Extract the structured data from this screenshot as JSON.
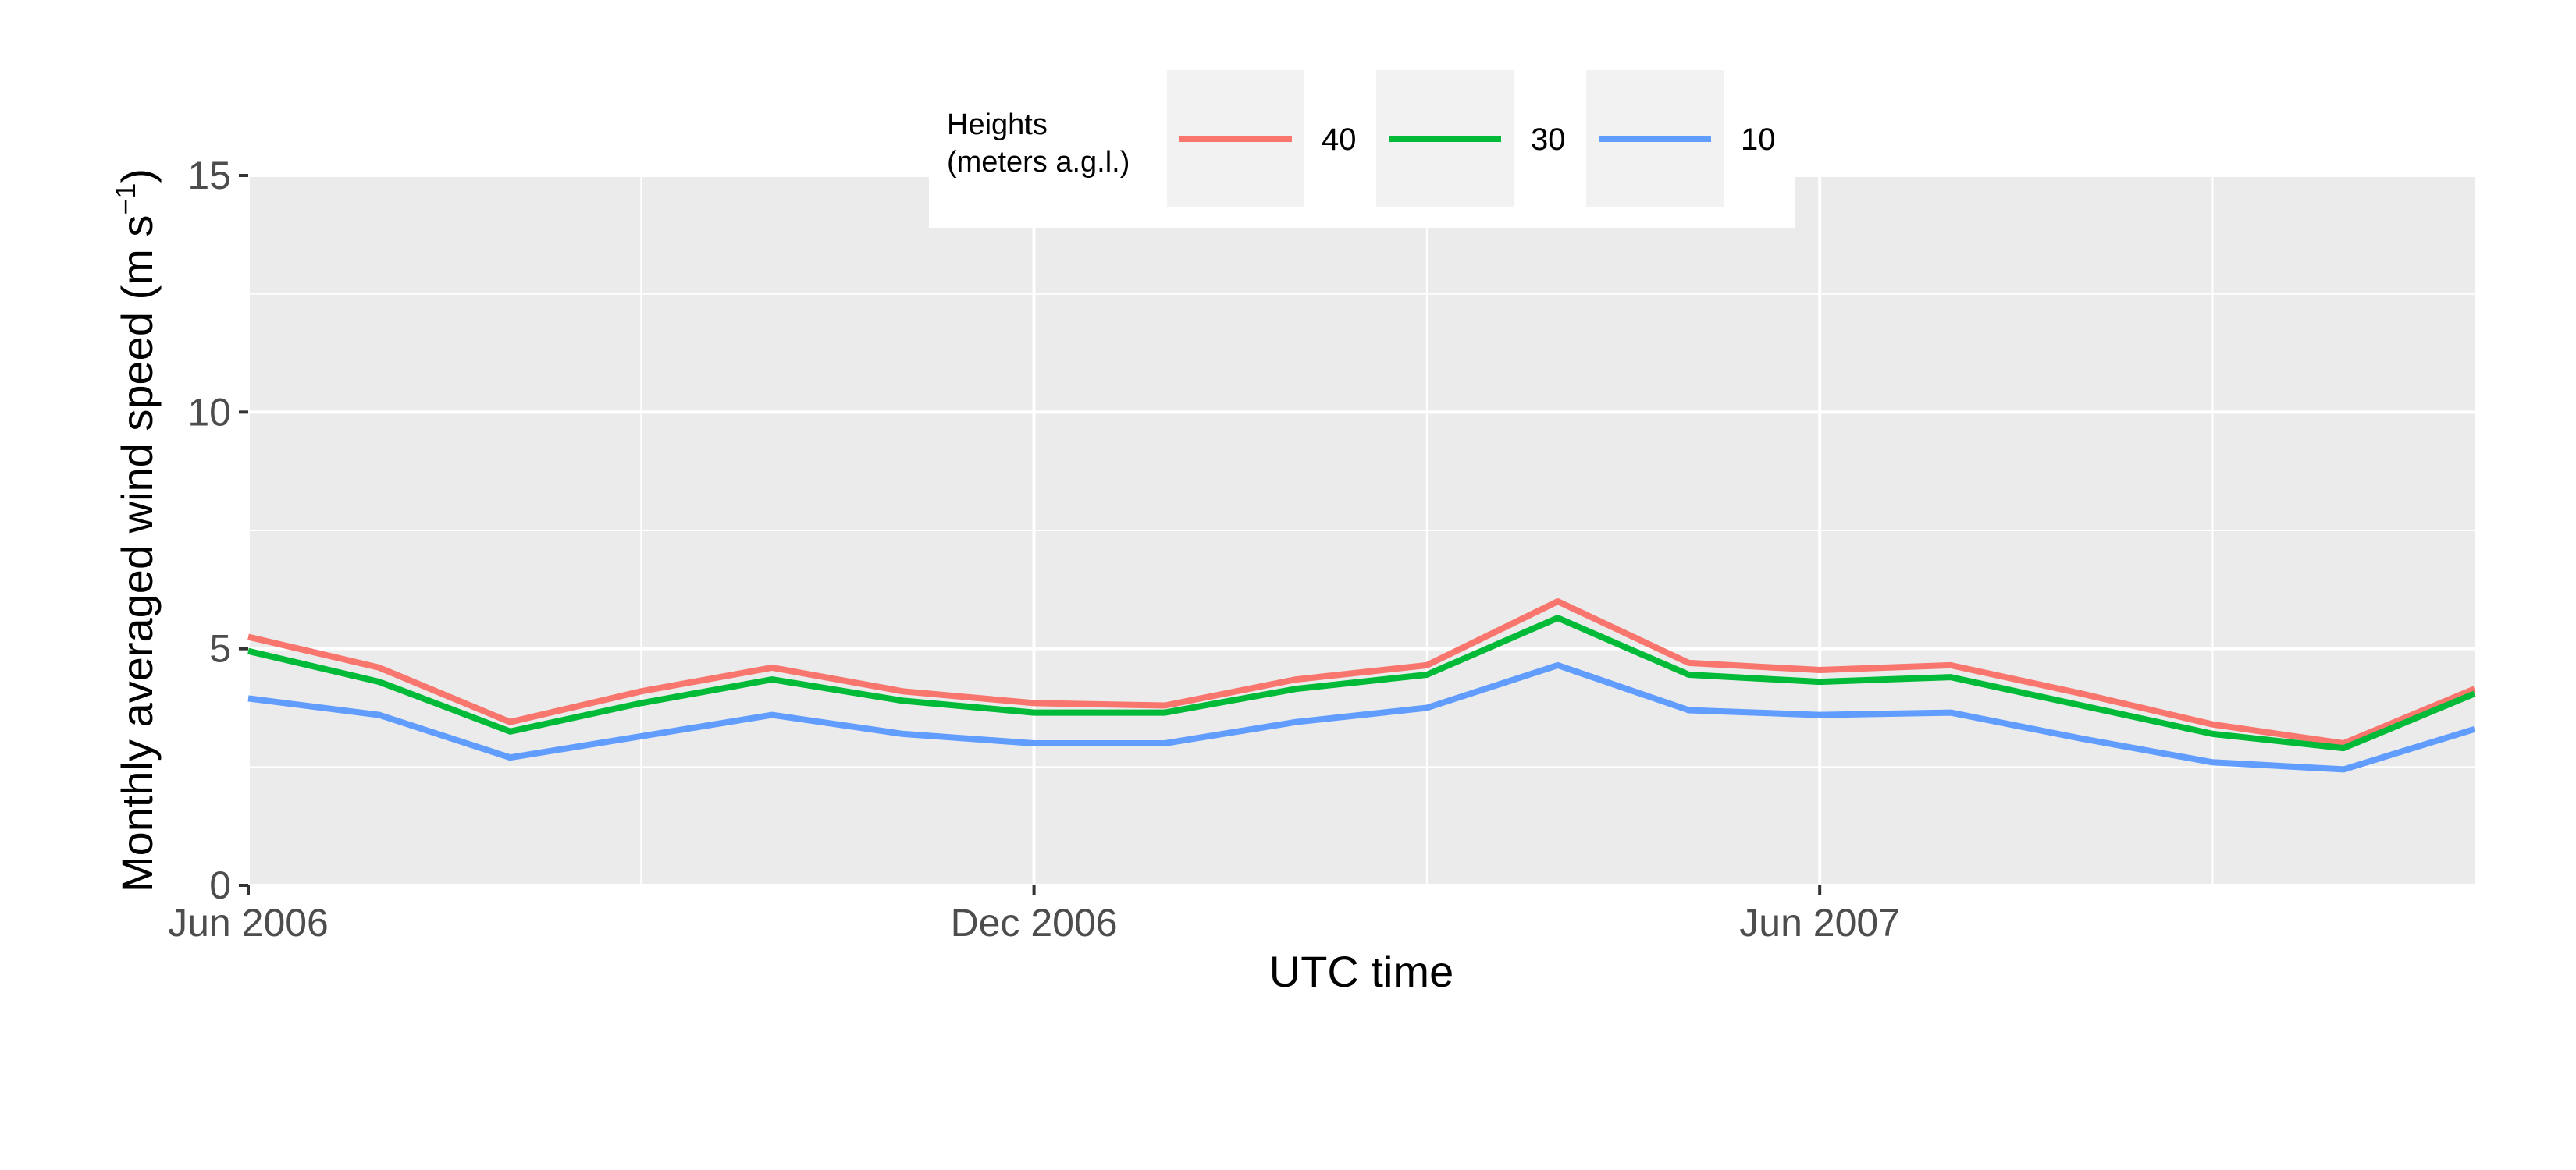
{
  "chart_data": {
    "type": "line",
    "title": "",
    "xlabel": "UTC time",
    "ylabel": "Monthly averaged wind speed (m s",
    "ylabel_unit_sup": "−1",
    "ylabel_close": ")",
    "ylim": [
      0,
      15
    ],
    "y_ticks": [
      0,
      5,
      10,
      15
    ],
    "y_tick_labels": [
      "0",
      "5",
      "10",
      "15"
    ],
    "xlim_months": [
      0,
      17
    ],
    "x_ticks_months": [
      0,
      6,
      12
    ],
    "x_tick_labels": [
      "Jun 2006",
      "Dec 2006",
      "Jun 2007"
    ],
    "x_minor_months": [
      3,
      9,
      15
    ],
    "x_months": [
      0,
      1,
      2,
      3,
      4,
      5,
      6,
      7,
      8,
      9,
      10,
      11,
      12,
      13,
      14,
      15,
      16,
      17
    ],
    "legend": {
      "title_line1": "Heights",
      "title_line2": "(meters a.g.l.)",
      "position": "top-center"
    },
    "series": [
      {
        "name": "40",
        "color": "#F8766D",
        "values": [
          5.25,
          4.6,
          3.45,
          4.1,
          4.6,
          4.1,
          3.85,
          3.8,
          4.35,
          4.65,
          6.0,
          4.7,
          4.55,
          4.65,
          4.05,
          3.4,
          3.0,
          4.15
        ]
      },
      {
        "name": "30",
        "color": "#00BA38",
        "values": [
          4.95,
          4.3,
          3.25,
          3.85,
          4.35,
          3.9,
          3.65,
          3.65,
          4.15,
          4.45,
          5.65,
          4.45,
          4.3,
          4.4,
          3.8,
          3.2,
          2.9,
          4.05
        ]
      },
      {
        "name": "10",
        "color": "#619CFF",
        "values": [
          3.95,
          3.6,
          2.7,
          3.15,
          3.6,
          3.2,
          3.0,
          3.0,
          3.45,
          3.75,
          4.65,
          3.7,
          3.6,
          3.65,
          3.1,
          2.6,
          2.45,
          3.3
        ]
      }
    ]
  }
}
